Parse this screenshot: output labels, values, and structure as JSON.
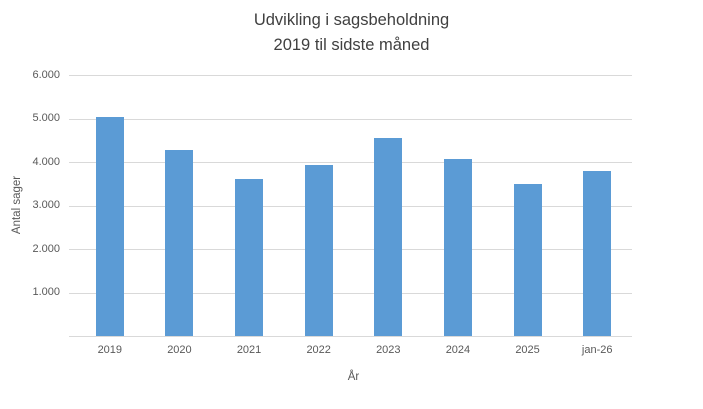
{
  "chart_data": {
    "type": "bar",
    "title": "Udvikling i sagsbeholdning 2019 til sidste måned",
    "title_lines": [
      "Udvikling i sagsbeholdning",
      "2019 til sidste måned"
    ],
    "categories": [
      "2019",
      "2020",
      "2021",
      "2022",
      "2023",
      "2024",
      "2025",
      "jan-26"
    ],
    "values": [
      5030,
      4270,
      3600,
      3920,
      4550,
      4070,
      3500,
      3790
    ],
    "xlabel": "År",
    "ylabel": "Antal sager",
    "ylim": [
      0,
      6000
    ],
    "yticks": [
      {
        "value": 0,
        "label": ""
      },
      {
        "value": 1000,
        "label": "1.000"
      },
      {
        "value": 2000,
        "label": "2.000"
      },
      {
        "value": 3000,
        "label": "3.000"
      },
      {
        "value": 4000,
        "label": "4.000"
      },
      {
        "value": 5000,
        "label": "5.000"
      },
      {
        "value": 6000,
        "label": "6.000"
      }
    ],
    "grid": true,
    "legend": false
  },
  "colors": {
    "bar": "#5B9BD5",
    "gridline": "#D9D9D9",
    "axis_line": "#D9D9D9",
    "tick_text": "#595959",
    "title_text": "#404040",
    "background": "#FFFFFF"
  }
}
